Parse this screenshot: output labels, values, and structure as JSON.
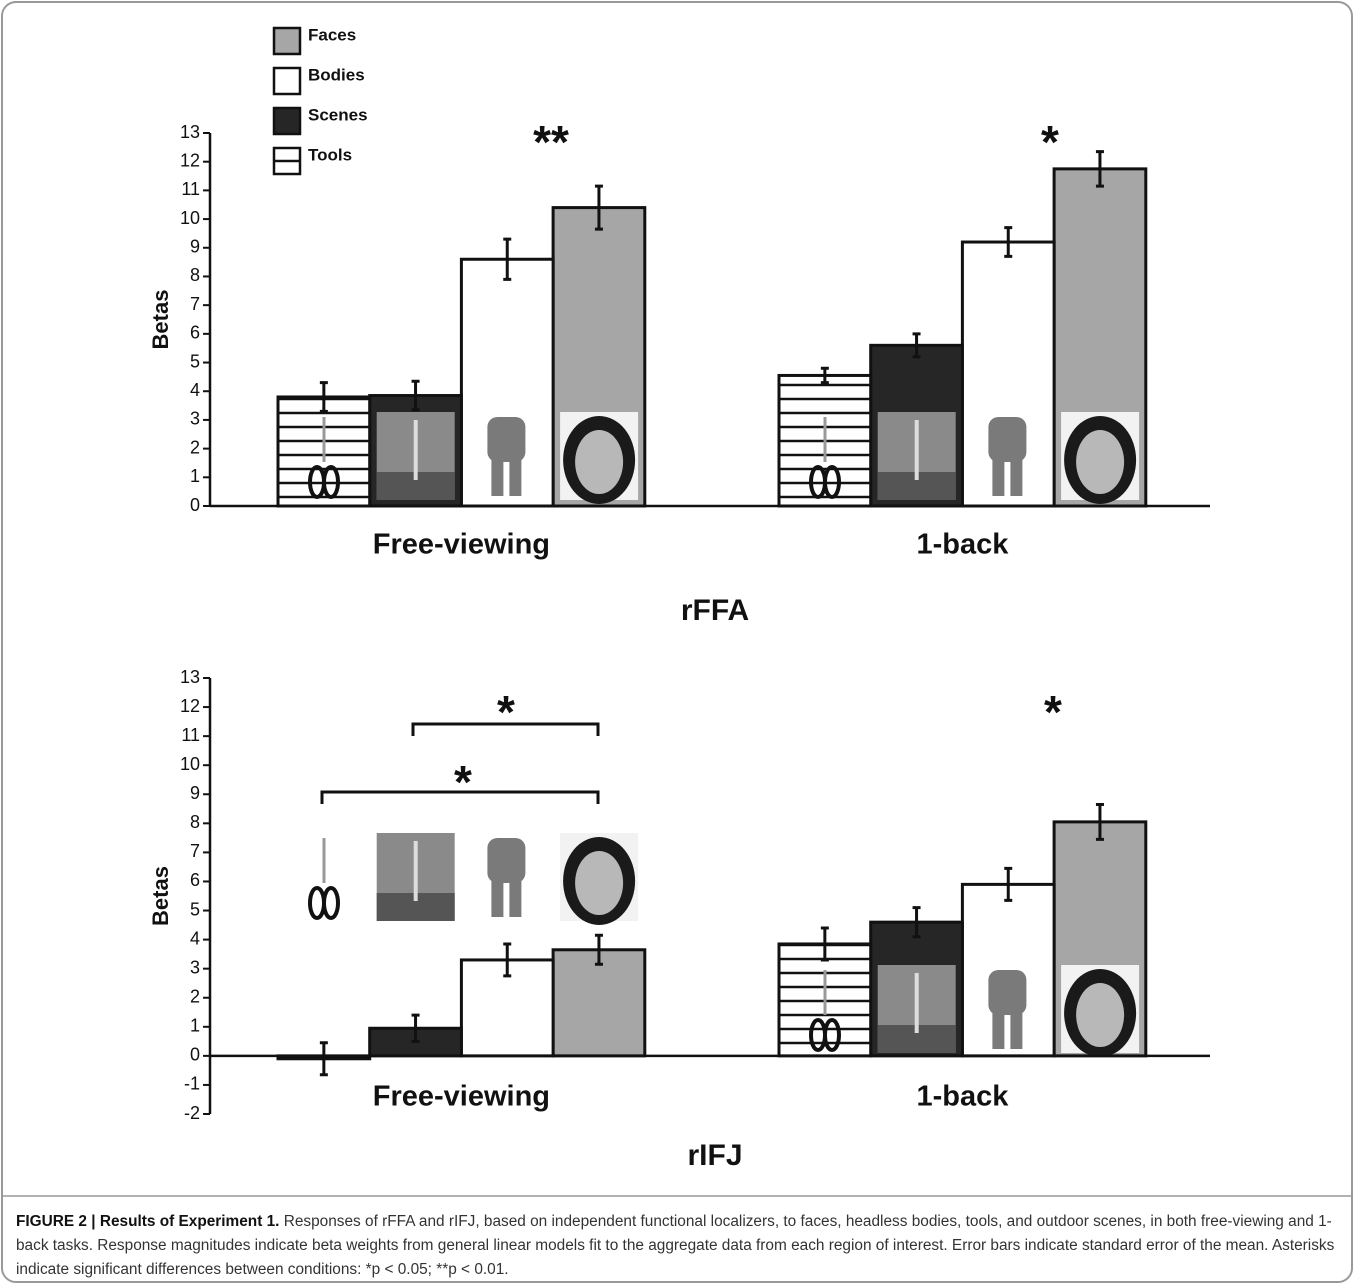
{
  "chart_data": [
    {
      "type": "bar",
      "title": "rFFA",
      "y_label": "Betas",
      "categories": [
        "Free-viewing",
        "1-back"
      ],
      "series": [
        {
          "name": "Faces",
          "color": "#a6a6a6",
          "values": [
            10.4,
            11.75
          ],
          "errors": [
            0.75,
            0.6
          ]
        },
        {
          "name": "Bodies",
          "color": "#ffffff",
          "values": [
            8.6,
            9.2
          ],
          "errors": [
            0.7,
            0.5
          ]
        },
        {
          "name": "Scenes",
          "color": "#262626",
          "values": [
            3.85,
            5.6
          ],
          "errors": [
            0.5,
            0.4
          ]
        },
        {
          "name": "Tools",
          "color": "#ffffff",
          "hatch": true,
          "values": [
            3.8,
            4.55
          ],
          "errors": [
            0.5,
            0.25
          ]
        }
      ],
      "ylim": [
        0,
        13
      ],
      "yticks": [
        0,
        1,
        2,
        3,
        4,
        5,
        6,
        7,
        8,
        9,
        10,
        11,
        12,
        13
      ],
      "legend": "top-left",
      "annotations": [
        "**",
        "*"
      ]
    },
    {
      "type": "bar",
      "title": "rIFJ",
      "y_label": "Betas",
      "categories": [
        "Free-viewing",
        "1-back"
      ],
      "series": [
        {
          "color": "#a6a6a6",
          "values": [
            3.65,
            8.05
          ],
          "errors": [
            0.5,
            0.6
          ]
        },
        {
          "color": "#ffffff",
          "values": [
            3.3,
            5.9
          ],
          "errors": [
            0.55,
            0.55
          ]
        },
        {
          "color": "#262626",
          "values": [
            0.95,
            4.6
          ],
          "errors": [
            0.45,
            0.5
          ]
        },
        {
          "color": "#ffffff",
          "hatch": true,
          "values": [
            -0.1,
            3.85
          ],
          "errors": [
            0.55,
            0.55
          ]
        }
      ],
      "ylim": [
        -2,
        13
      ],
      "yticks": [
        -2,
        -1,
        0,
        1,
        2,
        3,
        4,
        5,
        6,
        7,
        8,
        9,
        10,
        11,
        12,
        13
      ],
      "annotations": [
        "*",
        "*",
        "*"
      ]
    }
  ],
  "caption": {
    "label": "FIGURE 2 | Results of Experiment 1.",
    "text": "Responses of rFFA and rIFJ, based on independent functional localizers, to faces, headless bodies, tools, and outdoor scenes, in both free-viewing and 1-back tasks. Response magnitudes indicate beta weights from general linear models fit to the aggregate data from each region of interest. Error bars indicate standard error of the mean. Asterisks indicate significant differences between conditions: *p < 0.05; **p < 0.01."
  }
}
